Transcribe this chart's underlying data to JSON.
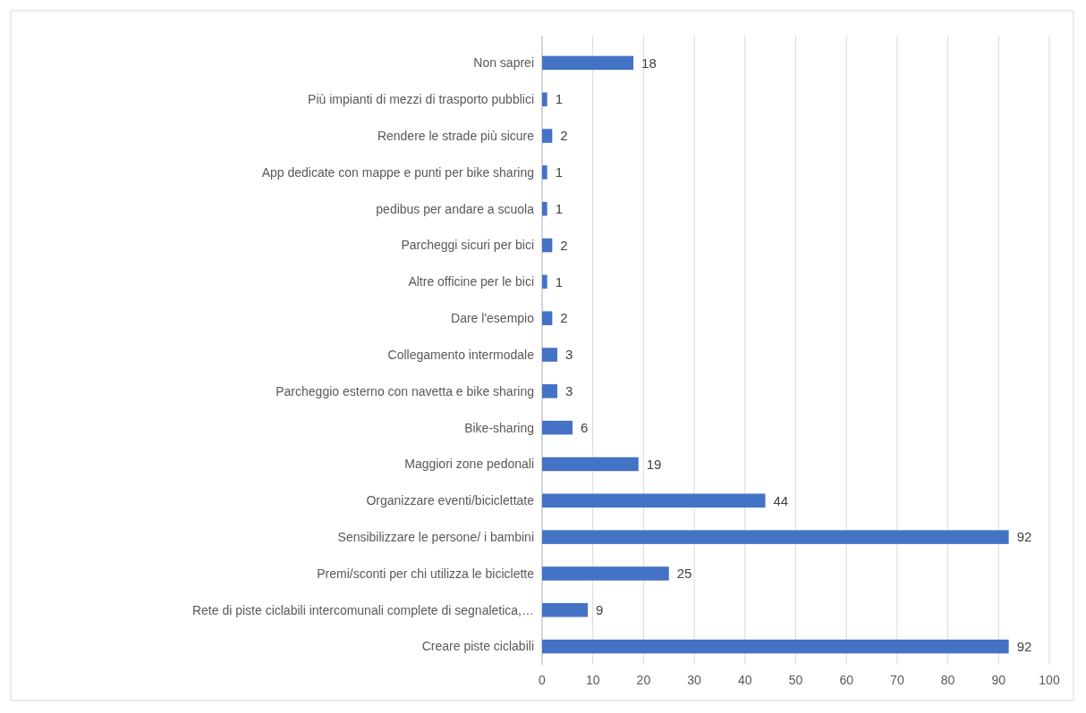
{
  "chart_data": {
    "type": "bar",
    "orientation": "horizontal",
    "categories": [
      "Non saprei",
      "Più impianti di mezzi di trasporto pubblici",
      "Rendere le strade più sicure",
      "App dedicate con mappe e punti per bike sharing",
      "pedibus per andare a scuola",
      "Parcheggi sicuri per bici",
      "Altre officine per le bici",
      "Dare l'esempio",
      "Collegamento intermodale",
      "Parcheggio esterno con navetta e bike sharing",
      "Bike-sharing",
      "Maggiori zone pedonali",
      "Organizzare eventi/biciclettate",
      "Sensibilizzare le persone/ i bambini",
      "Premi/sconti per chi utilizza le biciclette",
      "Rete di piste ciclabili intercomunali complete di segnaletica,…",
      "Creare piste ciclabili"
    ],
    "values": [
      18,
      1,
      2,
      1,
      1,
      2,
      1,
      2,
      3,
      3,
      6,
      19,
      44,
      92,
      25,
      9,
      92
    ],
    "color": "#4472c4",
    "xlim": [
      0,
      100
    ],
    "xticks": [
      0,
      10,
      20,
      30,
      40,
      50,
      60,
      70,
      80,
      90,
      100
    ],
    "grid": "x",
    "data_labels": true
  }
}
